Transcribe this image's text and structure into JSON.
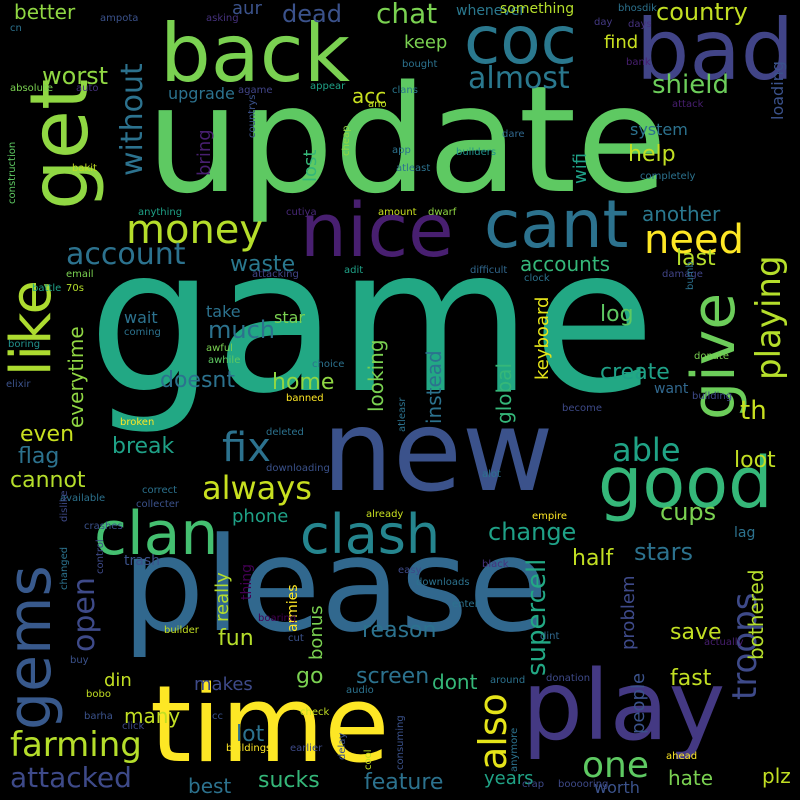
{
  "words": [
    {
      "text": "game",
      "color": "#22a884"
    },
    {
      "text": "update",
      "color": "#5ec962"
    },
    {
      "text": "please",
      "color": "#31688e"
    },
    {
      "text": "new",
      "color": "#3b528b"
    },
    {
      "text": "time",
      "color": "#fde725"
    },
    {
      "text": "play",
      "color": "#443983"
    },
    {
      "text": "back",
      "color": "#7ad151"
    },
    {
      "text": "get",
      "color": "#90d743"
    },
    {
      "text": "good",
      "color": "#35b779"
    },
    {
      "text": "nice",
      "color": "#481f70"
    },
    {
      "text": "bad",
      "color": "#414487"
    },
    {
      "text": "coc",
      "color": "#2a788e"
    },
    {
      "text": "cant",
      "color": "#2c728e"
    },
    {
      "text": "like",
      "color": "#addc30"
    },
    {
      "text": "gems",
      "color": "#38598c"
    },
    {
      "text": "give",
      "color": "#6ccd5a"
    },
    {
      "text": "clash",
      "color": "#25858e"
    },
    {
      "text": "clan",
      "color": "#44bf70"
    },
    {
      "text": "money",
      "color": "#b5de2b"
    },
    {
      "text": "need",
      "color": "#fde725"
    },
    {
      "text": "playing",
      "color": "#b5de2b"
    },
    {
      "text": "troops",
      "color": "#3e4a89"
    },
    {
      "text": "farming",
      "color": "#b5de2b"
    },
    {
      "text": "fix",
      "color": "#2c728e"
    },
    {
      "text": "always",
      "color": "#c8e020"
    },
    {
      "text": "attacked",
      "color": "#3e4a89"
    },
    {
      "text": "open",
      "color": "#3e4a89"
    },
    {
      "text": "also",
      "color": "#e5e419"
    },
    {
      "text": "one",
      "color": "#5ec962"
    },
    {
      "text": "able",
      "color": "#20a386"
    },
    {
      "text": "account",
      "color": "#2c728e"
    },
    {
      "text": "without",
      "color": "#2c728e"
    },
    {
      "text": "almost",
      "color": "#2a788e"
    },
    {
      "text": "chat",
      "color": "#7ad151"
    },
    {
      "text": "country",
      "color": "#c2df23"
    },
    {
      "text": "shield",
      "color": "#6ccd5a"
    },
    {
      "text": "worst",
      "color": "#90d743"
    },
    {
      "text": "dead",
      "color": "#3b528b"
    },
    {
      "text": "better",
      "color": "#90d743"
    },
    {
      "text": "upgrade",
      "color": "#2c728e"
    },
    {
      "text": "help",
      "color": "#c2df23"
    },
    {
      "text": "spell",
      "color": "#2a788e"
    },
    {
      "text": "another",
      "color": "#2a788e"
    },
    {
      "text": "waste",
      "color": "#2a788e"
    },
    {
      "text": "accounts",
      "color": "#35b779"
    },
    {
      "text": "last",
      "color": "#b5de2b"
    },
    {
      "text": "change",
      "color": "#1fa187"
    },
    {
      "text": "supercell",
      "color": "#22a884"
    },
    {
      "text": "stars",
      "color": "#2c728e"
    },
    {
      "text": "cups",
      "color": "#7ad151"
    },
    {
      "text": "bothered",
      "color": "#b5de2b"
    },
    {
      "text": "keyboard",
      "color": "#e5e419"
    },
    {
      "text": "global",
      "color": "#35b779"
    },
    {
      "text": "instead",
      "color": "#2c728e"
    },
    {
      "text": "looking",
      "color": "#7ad151"
    },
    {
      "text": "create",
      "color": "#1fa187"
    },
    {
      "text": "log",
      "color": "#5ec962"
    },
    {
      "text": "home",
      "color": "#90d743"
    },
    {
      "text": "doesnt",
      "color": "#2c728e"
    },
    {
      "text": "much",
      "color": "#2c728e"
    },
    {
      "text": "everytime",
      "color": "#90d743"
    },
    {
      "text": "break",
      "color": "#1fa187"
    },
    {
      "text": "even",
      "color": "#c8e020"
    },
    {
      "text": "flag",
      "color": "#2c728e"
    },
    {
      "text": "cannot",
      "color": "#b5de2b"
    },
    {
      "text": "loot",
      "color": "#c2df23"
    },
    {
      "text": "th",
      "color": "#c8e020"
    },
    {
      "text": "want",
      "color": "#31688e"
    },
    {
      "text": "sucks",
      "color": "#35b779"
    },
    {
      "text": "feature",
      "color": "#2c728e"
    },
    {
      "text": "hate",
      "color": "#7ad151"
    },
    {
      "text": "plz",
      "color": "#c2df23"
    },
    {
      "text": "best",
      "color": "#2c728e"
    },
    {
      "text": "fun",
      "color": "#b5de2b"
    },
    {
      "text": "lot",
      "color": "#2c728e"
    },
    {
      "text": "makes",
      "color": "#3e4a89"
    },
    {
      "text": "many",
      "color": "#c2df23"
    },
    {
      "text": "din",
      "color": "#c2df23"
    },
    {
      "text": "screen",
      "color": "#2c728e"
    },
    {
      "text": "dont",
      "color": "#35b779"
    },
    {
      "text": "go",
      "color": "#7ad151"
    },
    {
      "text": "fast",
      "color": "#c2df23"
    },
    {
      "text": "save",
      "color": "#c2df23"
    },
    {
      "text": "people",
      "color": "#3b528b"
    },
    {
      "text": "problem",
      "color": "#3e4a89"
    },
    {
      "text": "half",
      "color": "#c2df23"
    },
    {
      "text": "reason",
      "color": "#2c728e"
    },
    {
      "text": "bonus",
      "color": "#7ad151"
    },
    {
      "text": "really",
      "color": "#b5de2b"
    },
    {
      "text": "phone",
      "color": "#1fa187"
    },
    {
      "text": "years",
      "color": "#20a386"
    },
    {
      "text": "worth",
      "color": "#3b528b"
    },
    {
      "text": "find",
      "color": "#c8e020"
    },
    {
      "text": "keep",
      "color": "#7ad151"
    },
    {
      "text": "acc",
      "color": "#c8e020"
    },
    {
      "text": "aur",
      "color": "#3b528b"
    },
    {
      "text": "lost",
      "color": "#35b779"
    },
    {
      "text": "system",
      "color": "#2c728e"
    },
    {
      "text": "wifi",
      "color": "#1fa187"
    },
    {
      "text": "bring",
      "color": "#481f70"
    },
    {
      "text": "loading",
      "color": "#3b528b"
    },
    {
      "text": "space",
      "color": "#1fa187"
    },
    {
      "text": "star",
      "color": "#7ad151"
    },
    {
      "text": "take",
      "color": "#2c728e"
    },
    {
      "text": "wait",
      "color": "#2c728e"
    },
    {
      "text": "whenever",
      "color": "#2a788e"
    },
    {
      "text": "something",
      "color": "#b5de2b"
    },
    {
      "text": "trash",
      "color": "#3b528b"
    },
    {
      "text": "lag",
      "color": "#2c728e"
    },
    {
      "text": "thing",
      "color": "#440154"
    },
    {
      "text": "armies",
      "color": "#fde725"
    },
    {
      "text": "asking",
      "color": "#46327e"
    },
    {
      "text": "bhosdik",
      "color": "#2c728e"
    },
    {
      "text": "day",
      "color": "#443983"
    },
    {
      "text": "days",
      "color": "#46327e"
    },
    {
      "text": "bank",
      "color": "#481f70"
    },
    {
      "text": "cn",
      "color": "#2c728e"
    },
    {
      "text": "ampota",
      "color": "#3b528b"
    },
    {
      "text": "auto",
      "color": "#46327e"
    },
    {
      "text": "absolute",
      "color": "#7ad151"
    },
    {
      "text": "agame",
      "color": "#414487"
    },
    {
      "text": "bought",
      "color": "#2c728e"
    },
    {
      "text": "appear",
      "color": "#1fa187"
    },
    {
      "text": "clans",
      "color": "#2a788e"
    },
    {
      "text": "ano",
      "color": "#c2df23"
    },
    {
      "text": "attack",
      "color": "#481f70"
    },
    {
      "text": "dare",
      "color": "#31688e"
    },
    {
      "text": "countrys",
      "color": "#3b528b"
    },
    {
      "text": "cheap",
      "color": "#90d743"
    },
    {
      "text": "app",
      "color": "#2c728e"
    },
    {
      "text": "builders",
      "color": "#21918c"
    },
    {
      "text": "bakit",
      "color": "#c2df23"
    },
    {
      "text": "atleast",
      "color": "#2c728e"
    },
    {
      "text": "completely",
      "color": "#2c728e"
    },
    {
      "text": "construction",
      "color": "#5ec962"
    },
    {
      "text": "anything",
      "color": "#1fa187"
    },
    {
      "text": "cutiya",
      "color": "#482878"
    },
    {
      "text": "amount",
      "color": "#c8e020"
    },
    {
      "text": "dwarf",
      "color": "#90d743"
    },
    {
      "text": "attacking",
      "color": "#414487"
    },
    {
      "text": "adit",
      "color": "#1fa187"
    },
    {
      "text": "difficult",
      "color": "#31688e"
    },
    {
      "text": "clock",
      "color": "#2c728e"
    },
    {
      "text": "damage",
      "color": "#414487"
    },
    {
      "text": "email",
      "color": "#7ad151"
    },
    {
      "text": "70s",
      "color": "#b5de2b"
    },
    {
      "text": "battle",
      "color": "#1fa187"
    },
    {
      "text": "boring",
      "color": "#21918c"
    },
    {
      "text": "coming",
      "color": "#2c728e"
    },
    {
      "text": "awhile",
      "color": "#5ec962"
    },
    {
      "text": "awful",
      "color": "#7ad151"
    },
    {
      "text": "choice",
      "color": "#2c728e"
    },
    {
      "text": "elixir",
      "color": "#3b528b"
    },
    {
      "text": "banned",
      "color": "#fde725"
    },
    {
      "text": "donate",
      "color": "#7ad151"
    },
    {
      "text": "building",
      "color": "#3e4a89"
    },
    {
      "text": "bumb",
      "color": "#2c728e"
    },
    {
      "text": "become",
      "color": "#3e4a89"
    },
    {
      "text": "broken",
      "color": "#fde725"
    },
    {
      "text": "deleted",
      "color": "#2c728e"
    },
    {
      "text": "downloading",
      "color": "#3b528b"
    },
    {
      "text": "atleasr",
      "color": "#2c728e"
    },
    {
      "text": "alot",
      "color": "#2c728e"
    },
    {
      "text": "correct",
      "color": "#2c728e"
    },
    {
      "text": "available",
      "color": "#2c728e"
    },
    {
      "text": "collecter",
      "color": "#3b528b"
    },
    {
      "text": "already",
      "color": "#c8e020"
    },
    {
      "text": "empire",
      "color": "#fde725"
    },
    {
      "text": "crashes",
      "color": "#3b528b"
    },
    {
      "text": "dislike",
      "color": "#3e4a89"
    },
    {
      "text": "changed",
      "color": "#2c728e"
    },
    {
      "text": "control",
      "color": "#3e4a89"
    },
    {
      "text": "easy",
      "color": "#3e4a89"
    },
    {
      "text": "downloads",
      "color": "#2c728e"
    },
    {
      "text": "black",
      "color": "#46327e"
    },
    {
      "text": "enter",
      "color": "#2c728e"
    },
    {
      "text": "boaring",
      "color": "#440154"
    },
    {
      "text": "cut",
      "color": "#3b528b"
    },
    {
      "text": "builder",
      "color": "#c2df23"
    },
    {
      "text": "dint",
      "color": "#31688e"
    },
    {
      "text": "actually",
      "color": "#481f70"
    },
    {
      "text": "buy",
      "color": "#3b528b"
    },
    {
      "text": "bobo",
      "color": "#c2df23"
    },
    {
      "text": "around",
      "color": "#2c728e"
    },
    {
      "text": "donation",
      "color": "#3e4a89"
    },
    {
      "text": "audio",
      "color": "#2c728e"
    },
    {
      "text": "check",
      "color": "#c2df23"
    },
    {
      "text": "barha",
      "color": "#3b528b"
    },
    {
      "text": "cc",
      "color": "#3b528b"
    },
    {
      "text": "click",
      "color": "#3e4a89"
    },
    {
      "text": "buildings",
      "color": "#fde725"
    },
    {
      "text": "delay",
      "color": "#3b528b"
    },
    {
      "text": "earlier",
      "color": "#3e4a89"
    },
    {
      "text": "cool",
      "color": "#c2df23"
    },
    {
      "text": "consuming",
      "color": "#3b528b"
    },
    {
      "text": "anymore",
      "color": "#2c728e"
    },
    {
      "text": "ahead",
      "color": "#fde725"
    },
    {
      "text": "crap",
      "color": "#3e4a89"
    },
    {
      "text": "booooring",
      "color": "#3e4a89"
    }
  ]
}
